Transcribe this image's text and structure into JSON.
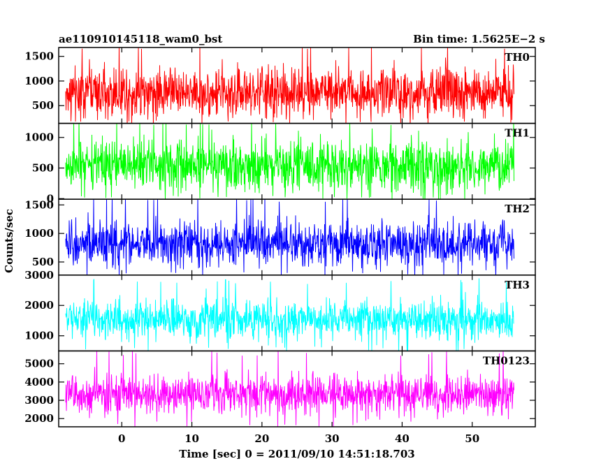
{
  "header": {
    "title": "ae110910145118_wam0_bst",
    "bin_time": "Bin time: 1.5625E−2 s"
  },
  "axes": {
    "ylabel": "Counts/sec",
    "xlabel": "Time [sec] 0 = 2011/09/10 14:51:18.703"
  },
  "chart_data": {
    "type": "line",
    "xlabel": "Time [sec] 0 = 2011/09/10 14:51:18.703",
    "ylabel": "Counts/sec",
    "xlim": [
      -9,
      59
    ],
    "data_x_range": [
      -8,
      56
    ],
    "bin_time_s": 0.015625,
    "x_ticks": [
      0,
      10,
      20,
      30,
      40,
      50
    ],
    "x_tick_labels": [
      "0",
      "10",
      "20",
      "30",
      "40",
      "50"
    ],
    "panels": [
      {
        "name": "TH0",
        "color": "#ff0000",
        "ylim": [
          140,
          1680
        ],
        "yticks": [
          500,
          1000,
          1500
        ],
        "ytick_labels": [
          "500",
          "1000",
          "1500"
        ],
        "level": 780,
        "spread": 260,
        "min_typ": 250,
        "max_typ": 1650
      },
      {
        "name": "TH1",
        "color": "#00ff00",
        "ylim": [
          -10,
          1230
        ],
        "yticks": [
          0,
          500,
          1000
        ],
        "ytick_labels": [
          "0",
          "500",
          "1000"
        ],
        "level": 540,
        "spread": 210,
        "min_typ": 60,
        "max_typ": 1200
      },
      {
        "name": "TH2",
        "color": "#0000ff",
        "ylim": [
          270,
          1600
        ],
        "yticks": [
          500,
          1000,
          1500
        ],
        "ytick_labels": [
          "500",
          "1000",
          "1500"
        ],
        "level": 820,
        "spread": 200,
        "min_typ": 320,
        "max_typ": 1550
      },
      {
        "name": "TH3",
        "color": "#00ffff",
        "ylim": [
          500,
          3000
        ],
        "yticks": [
          1000,
          2000,
          3000
        ],
        "ytick_labels": [
          "1000",
          "2000",
          "3000"
        ],
        "level": 1520,
        "spread": 330,
        "min_typ": 620,
        "max_typ": 2700
      },
      {
        "name": "TH0123",
        "color": "#ff00ff",
        "ylim": [
          1550,
          5700
        ],
        "yticks": [
          2000,
          3000,
          4000,
          5000
        ],
        "ytick_labels": [
          "2000",
          "3000",
          "4000",
          "5000"
        ],
        "level": 3350,
        "spread": 550,
        "min_typ": 1850,
        "max_typ": 5400
      }
    ]
  }
}
